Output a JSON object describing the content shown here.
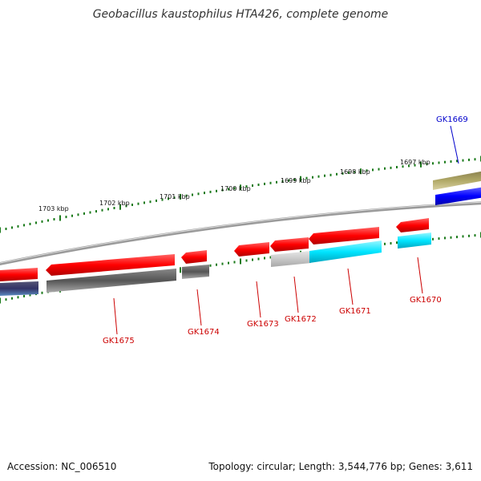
{
  "title": "Geobacillus kaustophilus HTA426, complete genome",
  "footer": {
    "accession": "Accession: NC_006510",
    "stats": "Topology: circular; Length: 3,544,776 bp; Genes: 3,611"
  },
  "colors": {
    "backbone": "#888888",
    "forward_ticks": "#1a7a1a",
    "gene_red": "#ff0000",
    "gene_grey": "#555555",
    "gene_cyan": "#00e5ff",
    "gene_lightgrey": "#cccccc",
    "gene_blue": "#0000ff",
    "gene_olive": "#a8a060",
    "label_red": "#cc0000",
    "label_blue": "#0000cc"
  },
  "scale_labels": [
    "1703 kbp",
    "1702 kbp",
    "1701 kbp",
    "1700 kbp",
    "1699 kbp",
    "1698 kbp",
    "1697 kbp"
  ],
  "genes": [
    {
      "name": "GK1675",
      "color": "label_red"
    },
    {
      "name": "GK1674",
      "color": "label_red"
    },
    {
      "name": "GK1673",
      "color": "label_red"
    },
    {
      "name": "GK1672",
      "color": "label_red"
    },
    {
      "name": "GK1671",
      "color": "label_red"
    },
    {
      "name": "GK1670",
      "color": "label_red"
    },
    {
      "name": "GK1669",
      "color": "label_blue"
    }
  ]
}
